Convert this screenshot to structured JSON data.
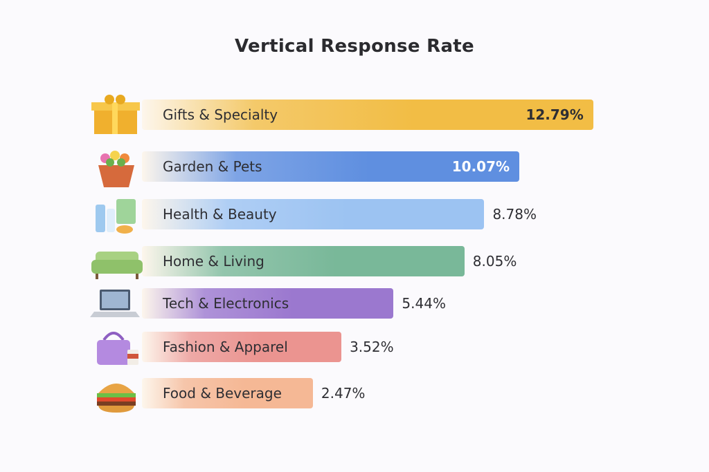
{
  "chart_data": {
    "type": "bar",
    "orientation": "horizontal",
    "title": "Vertical Response Rate",
    "categories": [
      "Gifts & Specialty",
      "Garden & Pets",
      "Health & Beauty",
      "Home & Living",
      "Tech & Electronics",
      "Fashion & Apparel",
      "Food & Beverage"
    ],
    "values": [
      12.79,
      10.07,
      8.78,
      8.05,
      5.44,
      3.52,
      2.47
    ],
    "value_labels": [
      "12.79%",
      "10.07%",
      "8.78%",
      "8.05%",
      "5.44%",
      "3.52%",
      "2.47%"
    ],
    "unit": "%",
    "colors": [
      "#f2bd45",
      "#5f8fe0",
      "#9cc3f2",
      "#79b899",
      "#9b78cf",
      "#eb9490",
      "#f5b895"
    ],
    "icons": [
      "gift-box-icon",
      "flower-pot-icon",
      "cosmetics-icon",
      "sofa-icon",
      "laptop-icon",
      "handbag-icon",
      "burger-icon"
    ],
    "xlim": [
      0,
      13
    ],
    "grid": false,
    "legend": "none"
  }
}
